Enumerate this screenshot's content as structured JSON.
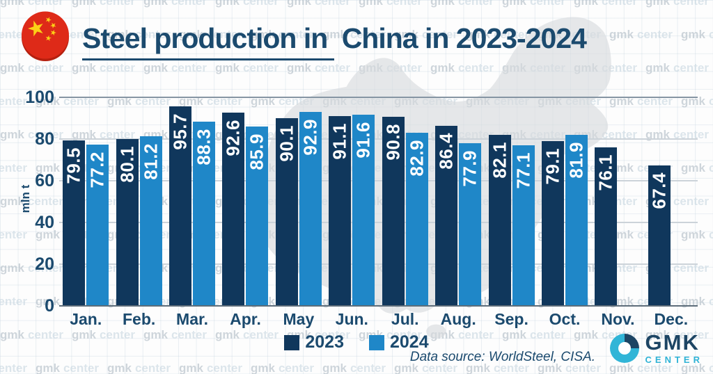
{
  "header": {
    "title_underlined": "Steel production in",
    "title_rest": "China in 2023-2024"
  },
  "chart_data": {
    "type": "bar",
    "title": "Steel production in China in 2023-2024",
    "unit_label": "mln t",
    "categories": [
      "Jan.",
      "Feb.",
      "Mar.",
      "Apr.",
      "May",
      "Jun.",
      "Jul.",
      "Aug.",
      "Sep.",
      "Oct.",
      "Nov.",
      "Dec."
    ],
    "series": [
      {
        "name": "2023",
        "color": "#10375c",
        "values": [
          79.5,
          80.1,
          95.7,
          92.6,
          90.1,
          91.1,
          90.8,
          86.4,
          82.1,
          79.1,
          76.1,
          67.4
        ]
      },
      {
        "name": "2024",
        "color": "#1f87c8",
        "values": [
          77.2,
          81.2,
          88.3,
          85.9,
          92.9,
          91.6,
          82.9,
          77.9,
          77.1,
          81.9,
          null,
          null
        ]
      }
    ],
    "ylim": [
      0,
      100
    ],
    "yticks": [
      0,
      20,
      40,
      60,
      80,
      100
    ],
    "grid": true,
    "legend_position": "bottom"
  },
  "footer": {
    "source": "Data source: WorldSteel, CISA.",
    "logo_text": "GMK",
    "logo_subtext": "CENTER"
  },
  "watermark": {
    "word1": "gmk",
    "word2": "center"
  },
  "colors": {
    "bar_2023": "#10375c",
    "bar_2024": "#1f87c8",
    "text_navy": "#1b4a6e",
    "logo_cyan": "#2fb3d6",
    "logo_navy": "#1d4564",
    "flag_red": "#de2a18",
    "flag_shadow": "#b5200f",
    "flag_yellow": "#fcd116",
    "map_gray": "#d7dadd"
  }
}
